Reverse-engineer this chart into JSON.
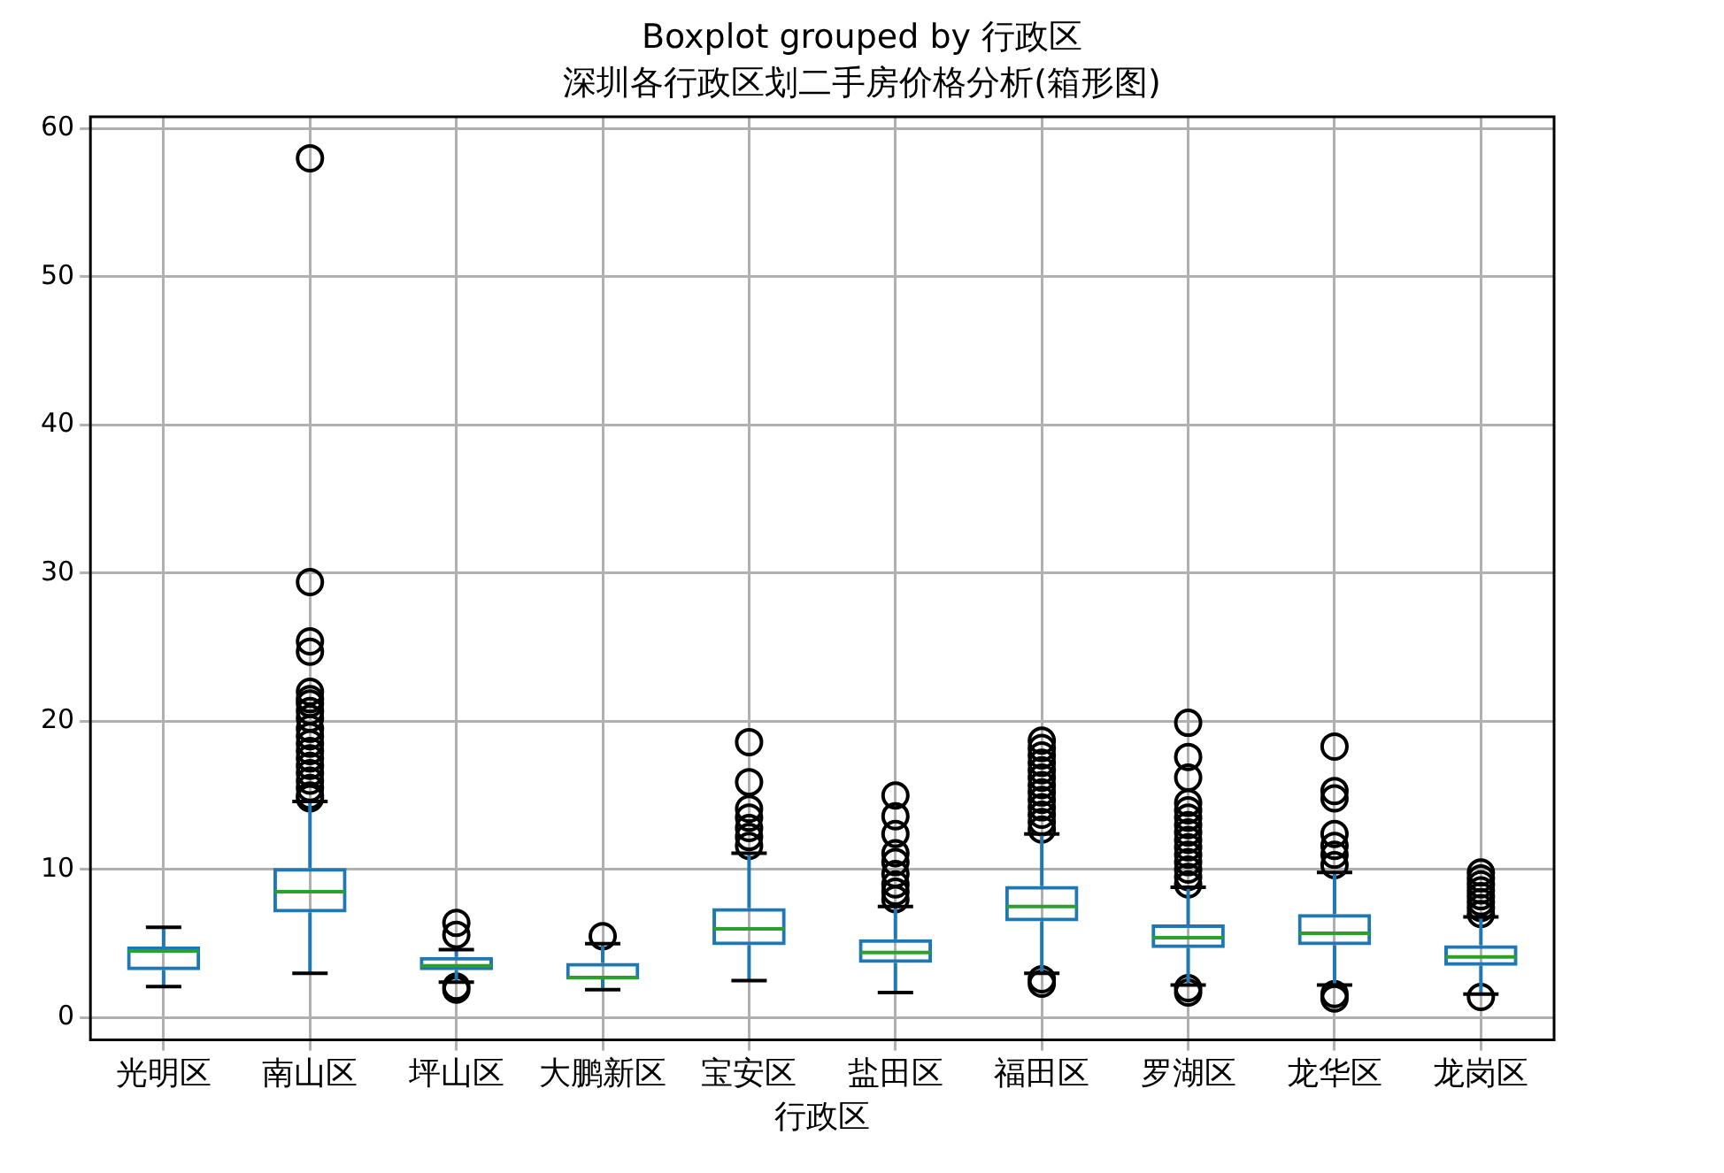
{
  "chart_data": {
    "type": "box",
    "title": "深圳各行政区划二手房价格分析(箱形图)",
    "subtitle": "Boxplot grouped by 行政区",
    "xlabel": "行政区",
    "categories": [
      "光明区",
      "南山区",
      "坪山区",
      "大鹏新区",
      "宝安区",
      "盐田区",
      "福田区",
      "罗湖区",
      "龙华区",
      "龙岗区"
    ],
    "ylim": [
      -1.5,
      60.8
    ],
    "yticks": [
      0,
      10,
      20,
      30,
      40,
      50,
      60
    ],
    "grid": true,
    "legend": false,
    "series": [
      {
        "color": "#1f77b4",
        "boxes": [
          {
            "low": 2.1,
            "q1": 3.2,
            "median": 4.5,
            "q3": 4.8,
            "high": 6.1
          },
          {
            "low": 3.0,
            "q1": 7.1,
            "median": 8.5,
            "q3": 10.1,
            "high": 14.6,
            "outliers": [
              58,
              29.4,
              25.4,
              24.7,
              22,
              21.5,
              21.2,
              20.7,
              20.2,
              19.5,
              19,
              18.5,
              18,
              17.5,
              17,
              16.5,
              16,
              15.5,
              15,
              14.8
            ]
          },
          {
            "low": 2.4,
            "q1": 3.2,
            "median": 3.5,
            "q3": 4.1,
            "high": 4.6,
            "outliers": [
              6.4,
              5.6,
              2.1,
              1.9
            ]
          },
          {
            "low": 1.9,
            "q1": 2.6,
            "median": 2.7,
            "q3": 3.7,
            "high": 5.0,
            "outliers": [
              5.5
            ]
          },
          {
            "low": 2.5,
            "q1": 4.9,
            "median": 6.0,
            "q3": 7.4,
            "high": 11.1,
            "outliers": [
              18.6,
              15.9,
              14.1,
              13.5,
              12.8,
              12.2,
              11.6
            ]
          },
          {
            "low": 1.7,
            "q1": 3.7,
            "median": 4.4,
            "q3": 5.3,
            "high": 7.5,
            "outliers": [
              15,
              13.6,
              12.4,
              11.1,
              10.5,
              9.7,
              9,
              8.5,
              8
            ]
          },
          {
            "low": 3.0,
            "q1": 6.5,
            "median": 7.5,
            "q3": 8.9,
            "high": 12.4,
            "outliers": [
              18.7,
              18.2,
              17.7,
              17.2,
              16.7,
              16.2,
              15.7,
              15.2,
              14.7,
              14.2,
              13.7,
              13.2,
              12.7,
              2.6,
              2.3
            ]
          },
          {
            "low": 2.2,
            "q1": 4.7,
            "median": 5.4,
            "q3": 6.3,
            "high": 8.8,
            "outliers": [
              19.9,
              17.6,
              16.2,
              14.5,
              14,
              13.5,
              13,
              12.5,
              12,
              11.5,
              11,
              10.5,
              10,
              9.5,
              9,
              2.0,
              1.7
            ]
          },
          {
            "low": 2.2,
            "q1": 4.9,
            "median": 5.7,
            "q3": 7.0,
            "high": 9.8,
            "outliers": [
              18.3,
              15.3,
              14.8,
              12.4,
              11.6,
              11,
              10.3,
              1.6,
              1.3
            ]
          },
          {
            "low": 1.6,
            "q1": 3.5,
            "median": 4.1,
            "q3": 4.9,
            "high": 6.8,
            "outliers": [
              9.8,
              9.4,
              9,
              8.6,
              8.2,
              7.8,
              7.4,
              7,
              1.4
            ]
          }
        ]
      }
    ]
  }
}
